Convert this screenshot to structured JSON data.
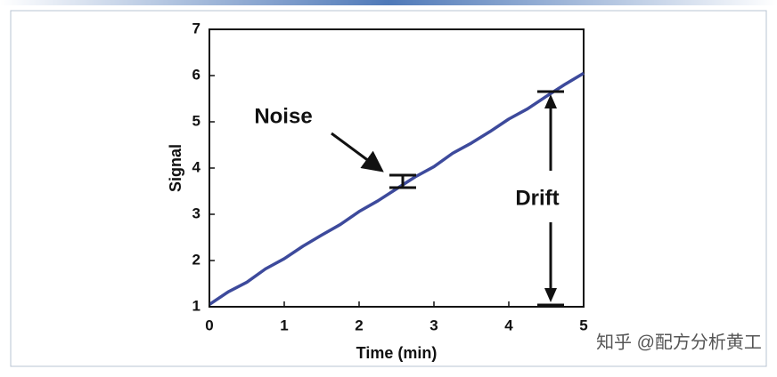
{
  "chart_data": {
    "type": "line",
    "x_label": "Time (min)",
    "y_label": "Signal",
    "x": [
      0,
      0.25,
      0.5,
      0.75,
      1,
      1.25,
      1.5,
      1.75,
      2,
      2.25,
      2.5,
      2.75,
      3,
      3.25,
      3.5,
      3.75,
      4,
      4.25,
      4.5,
      4.75,
      5
    ],
    "series": [
      {
        "color": "#3d4a9c",
        "values": [
          1.05,
          1.32,
          1.53,
          1.82,
          2.04,
          2.31,
          2.55,
          2.78,
          3.06,
          3.29,
          3.55,
          3.81,
          4.03,
          4.32,
          4.54,
          4.79,
          5.06,
          5.28,
          5.55,
          5.81,
          6.05
        ]
      }
    ],
    "xlim": [
      0,
      5
    ],
    "xticks": [
      0,
      1,
      2,
      3,
      4,
      5
    ],
    "ylim": [
      1,
      7
    ],
    "yticks": [
      1,
      2,
      3,
      4,
      5,
      6,
      7
    ],
    "grid": false,
    "annotations": [
      "Noise",
      "Drift"
    ],
    "watermark": "知乎 @配方分析黄工"
  }
}
